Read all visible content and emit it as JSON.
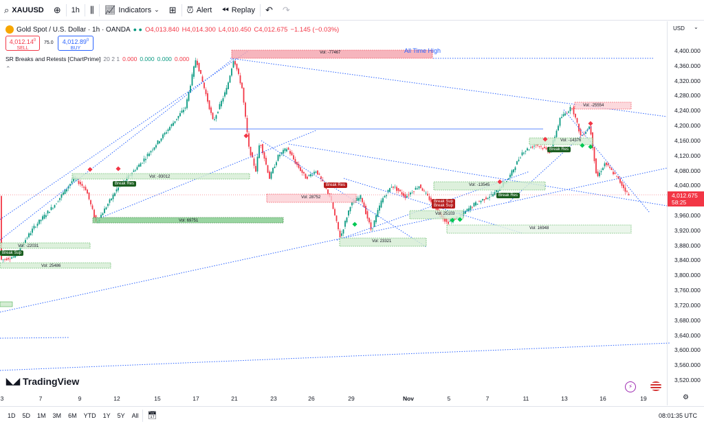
{
  "toolbar": {
    "symbol": "XAUUSD",
    "interval": "1h",
    "indicators_label": "Indicators",
    "alert_label": "Alert",
    "replay_label": "Replay"
  },
  "legend": {
    "title": "Gold Spot / U.S. Dollar · 1h · OANDA",
    "open": "O4,013.840",
    "high": "H4,014.300",
    "low": "L4,010.450",
    "close": "C4,012.675",
    "change": "−1.145 (−0.03%)",
    "sell_price": "4,012.14",
    "sell_sup": "0",
    "sell_label": "SELL",
    "spread": "75.0",
    "buy_price": "4,012.89",
    "buy_sup": "0",
    "buy_label": "BUY",
    "indicator": "SR Breaks and Retests [ChartPrime]",
    "indicator_params": "20 2 1",
    "indicator_values": [
      "0.000",
      "0.000",
      "0.000",
      "0.000"
    ]
  },
  "price_axis": {
    "currency": "USD",
    "ticks": [
      "4,400.000",
      "4,360.000",
      "4,320.000",
      "4,280.000",
      "4,240.000",
      "4,200.000",
      "4,160.000",
      "4,120.000",
      "4,080.000",
      "4,040.000",
      "4,000.000",
      "3,960.000",
      "3,920.000",
      "3,880.000",
      "3,840.000",
      "3,800.000",
      "3,760.000",
      "3,720.000",
      "3,680.000",
      "3,640.000",
      "3,600.000",
      "3,560.000",
      "3,520.000"
    ],
    "current_price": "4,012.675",
    "countdown": "58:25"
  },
  "time_axis": {
    "ticks": [
      "3",
      "7",
      "9",
      "12",
      "15",
      "17",
      "21",
      "23",
      "26",
      "29",
      "Nov",
      "5",
      "7",
      "11",
      "13",
      "16",
      "19"
    ]
  },
  "annotations": {
    "all_time_high": "All Time High",
    "volumes": [
      "Vol: -77467",
      "Vol: -93012",
      "Vol: 69751",
      "Vol: -22031",
      "Vol: 25486",
      "Vol: 28752",
      "Vol: 23321",
      "Vol: 25103",
      "Vol: -13545",
      "Vol: 16948",
      "Vol: -14376",
      "Vol: -25554"
    ],
    "signals": [
      "Break Sup",
      "Break Res",
      "Break Res",
      "Break Sup",
      "Break Sup",
      "Break Res",
      "Break Res"
    ]
  },
  "branding": {
    "logo": "TradingView"
  },
  "bottom_bar": {
    "timeframes": [
      "1D",
      "5D",
      "1M",
      "3M",
      "6M",
      "YTD",
      "1Y",
      "5Y",
      "All"
    ],
    "clock": "08:01:35 UTC"
  },
  "colors": {
    "bull": "#089981",
    "bear": "#f23645",
    "line": "#2962ff",
    "accent": "#2962ff"
  }
}
